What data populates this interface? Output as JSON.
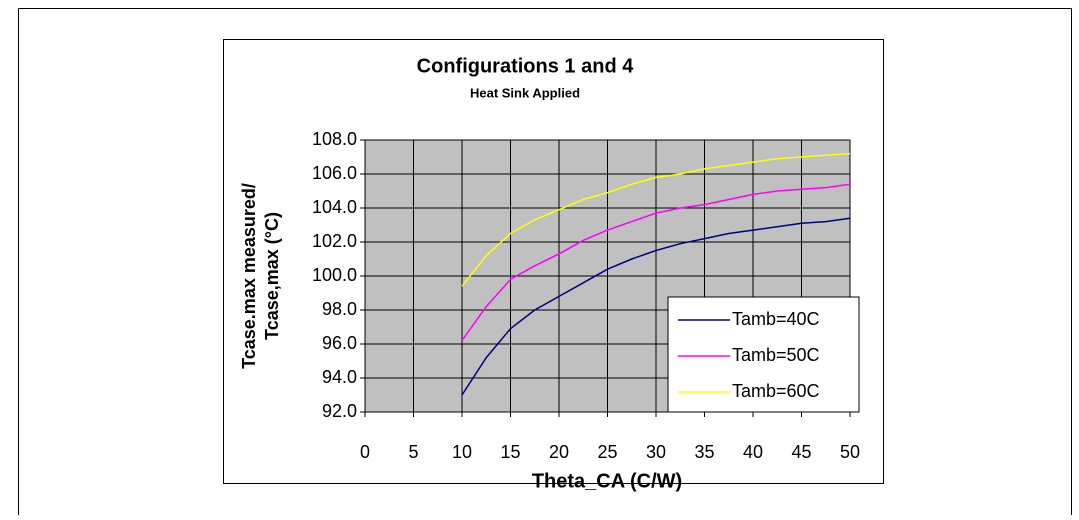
{
  "chart_data": {
    "type": "line",
    "title": "Configurations 1 and 4",
    "subtitle": "Heat Sink Applied",
    "xlabel": "Theta_CA (C/W)",
    "ylabel": [
      "Tcase.max measured/",
      "Tcase,max (°C)"
    ],
    "x": [
      10,
      12.5,
      15,
      17.5,
      20,
      22.5,
      25,
      27.5,
      30,
      32.5,
      35,
      37.5,
      40,
      42.5,
      45,
      47.5,
      50
    ],
    "series": [
      {
        "name": "Tamb=40C",
        "color": "#000080",
        "values": [
          93.0,
          95.2,
          96.9,
          98.0,
          98.8,
          99.6,
          100.4,
          101.0,
          101.5,
          101.9,
          102.2,
          102.5,
          102.7,
          102.9,
          103.1,
          103.2,
          103.4
        ]
      },
      {
        "name": "Tamb=50C",
        "color": "#ff00ff",
        "values": [
          96.2,
          98.2,
          99.8,
          100.6,
          101.3,
          102.1,
          102.7,
          103.2,
          103.7,
          104.0,
          104.2,
          104.5,
          104.8,
          105.0,
          105.1,
          105.2,
          105.4
        ]
      },
      {
        "name": "Tamb=60C",
        "color": "#ffff00",
        "values": [
          99.4,
          101.2,
          102.5,
          103.3,
          103.9,
          104.5,
          104.9,
          105.4,
          105.8,
          106.0,
          106.3,
          106.5,
          106.7,
          106.9,
          107.0,
          107.1,
          107.2
        ]
      }
    ],
    "xlim": [
      0,
      50
    ],
    "xticks": [
      0,
      5,
      10,
      15,
      20,
      25,
      30,
      35,
      40,
      45,
      50
    ],
    "ylim": [
      92,
      108
    ],
    "yticks": [
      {
        "value": 92,
        "label": "92.0"
      },
      {
        "value": 94,
        "label": "94.0"
      },
      {
        "value": 96,
        "label": "96.0"
      },
      {
        "value": 98,
        "label": "98.0"
      },
      {
        "value": 100,
        "label": "100.0"
      },
      {
        "value": 102,
        "label": "102.0"
      },
      {
        "value": 104,
        "label": "104.0"
      },
      {
        "value": 106,
        "label": "106.0"
      },
      {
        "value": 108,
        "label": "108.0"
      }
    ],
    "grid": true,
    "plot_background": "#c0c0c0",
    "legend": "lower right"
  }
}
